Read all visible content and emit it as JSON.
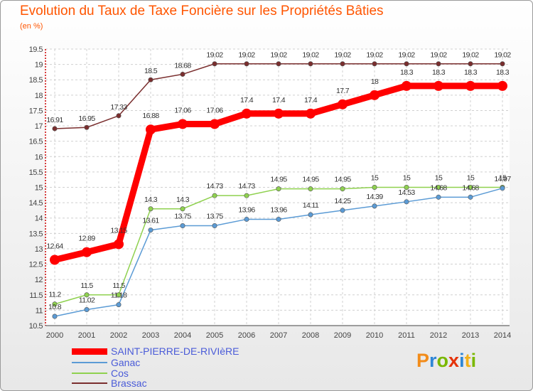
{
  "title": "Evolution du Taux de Taxe Foncière sur les Propriétés Bâties",
  "unit_label": "(en %)",
  "logo": {
    "text": "Proxiti",
    "letters": [
      "P",
      "r",
      "o",
      "x",
      "i",
      "t",
      "i"
    ],
    "colors": [
      "#f28c1a",
      "#2e86d6",
      "#7ab800",
      "#e5330a",
      "#2e86d6",
      "#f2b01a",
      "#7ab800"
    ]
  },
  "chart_data": {
    "type": "line",
    "title": "Evolution du Taux de Taxe Foncière sur les Propriétés Bâties",
    "ylabel": "(en %)",
    "ylim": [
      10.5,
      19.5
    ],
    "yticks": [
      "10.5",
      "11",
      "11.5",
      "12",
      "12.5",
      "13",
      "13.5",
      "14",
      "14.5",
      "15",
      "15.5",
      "16",
      "16.5",
      "17",
      "17.5",
      "18",
      "18.5",
      "19",
      "19.5"
    ],
    "categories": [
      "2000",
      "2001",
      "2002",
      "2003",
      "2004",
      "2005",
      "2006",
      "2007",
      "2008",
      "2009",
      "2010",
      "2011",
      "2012",
      "2013",
      "2014"
    ],
    "grid": true,
    "series": [
      {
        "name": "SAINT-PIERRE-DE-RIVIèRE",
        "color": "#ff0000",
        "emphasis": true,
        "values": [
          12.64,
          12.89,
          13.15,
          16.88,
          17.06,
          17.06,
          17.4,
          17.4,
          17.4,
          17.7,
          18,
          18.3,
          18.3,
          18.3,
          18.3
        ],
        "labels": [
          "12.64",
          "12.89",
          "13.15",
          "16.88",
          "17.06",
          "17.06",
          "17.4",
          "17.4",
          "17.4",
          "17.7",
          "18",
          "18.3",
          "18.3",
          "18.3",
          "18.3"
        ]
      },
      {
        "name": "Ganac",
        "color": "#5b9bd5",
        "values": [
          10.8,
          11.02,
          11.18,
          13.61,
          13.75,
          13.75,
          13.96,
          13.96,
          14.11,
          14.25,
          14.39,
          14.53,
          14.68,
          14.68,
          14.97
        ],
        "labels": [
          "10.8",
          "11.02",
          "11.18",
          "13.61",
          "13.75",
          "13.75",
          "13.96",
          "13.96",
          "14.11",
          "14.25",
          "14.39",
          "14.53",
          "14.68",
          "14.68",
          "14.97"
        ]
      },
      {
        "name": "Cos",
        "color": "#8fd14f",
        "values": [
          11.2,
          11.5,
          11.5,
          14.3,
          14.3,
          14.73,
          14.73,
          14.95,
          14.95,
          14.95,
          15,
          15,
          15,
          15,
          15
        ],
        "labels": [
          "11.2",
          "11.5",
          "11.5",
          "14.3",
          "14.3",
          "14.73",
          "14.73",
          "14.95",
          "14.95",
          "14.95",
          "15",
          "15",
          "15",
          "15",
          "15"
        ]
      },
      {
        "name": "Brassac",
        "color": "#7a2e2e",
        "values": [
          16.91,
          16.95,
          17.33,
          18.5,
          18.68,
          19.02,
          19.02,
          19.02,
          19.02,
          19.02,
          19.02,
          19.02,
          19.02,
          19.02,
          19.02
        ],
        "labels": [
          "16.91",
          "16.95",
          "17.33",
          "18.5",
          "18.68",
          "19.02",
          "19.02",
          "19.02",
          "19.02",
          "19.02",
          "19.02",
          "19.02",
          "19.02",
          "19.02",
          "19.02"
        ]
      }
    ]
  }
}
